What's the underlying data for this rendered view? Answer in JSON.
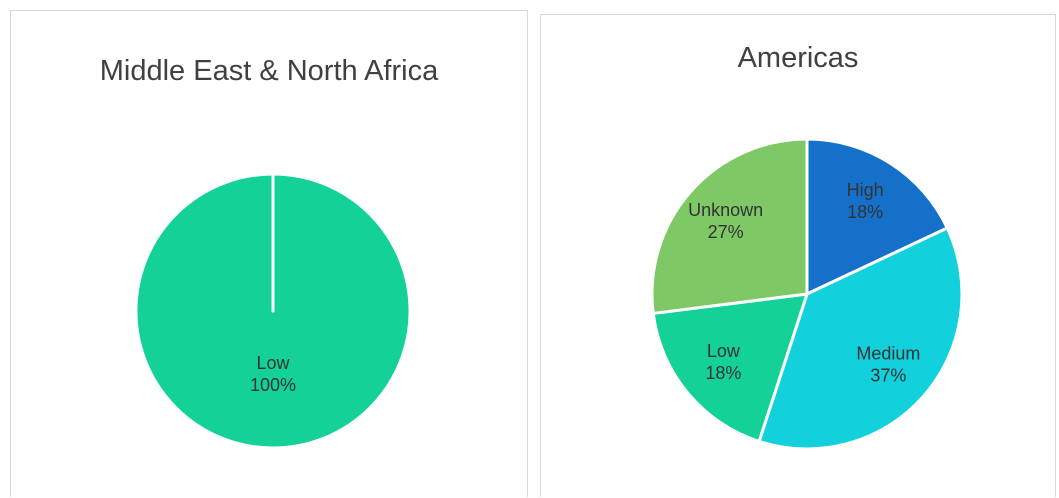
{
  "chart_data": [
    {
      "type": "pie",
      "title": "Middle East & North Africa",
      "categories": [
        "Low"
      ],
      "values": [
        100
      ],
      "value_labels": [
        "100%"
      ],
      "colors": [
        "#13d197"
      ]
    },
    {
      "type": "pie",
      "title": "Americas",
      "categories": [
        "High",
        "Medium",
        "Low",
        "Unknown"
      ],
      "values": [
        18,
        37,
        18,
        27
      ],
      "value_labels": [
        "18%",
        "37%",
        "18%",
        "27%"
      ],
      "colors": [
        "#1470c8",
        "#12d0dc",
        "#13d197",
        "#7ec965"
      ]
    }
  ]
}
